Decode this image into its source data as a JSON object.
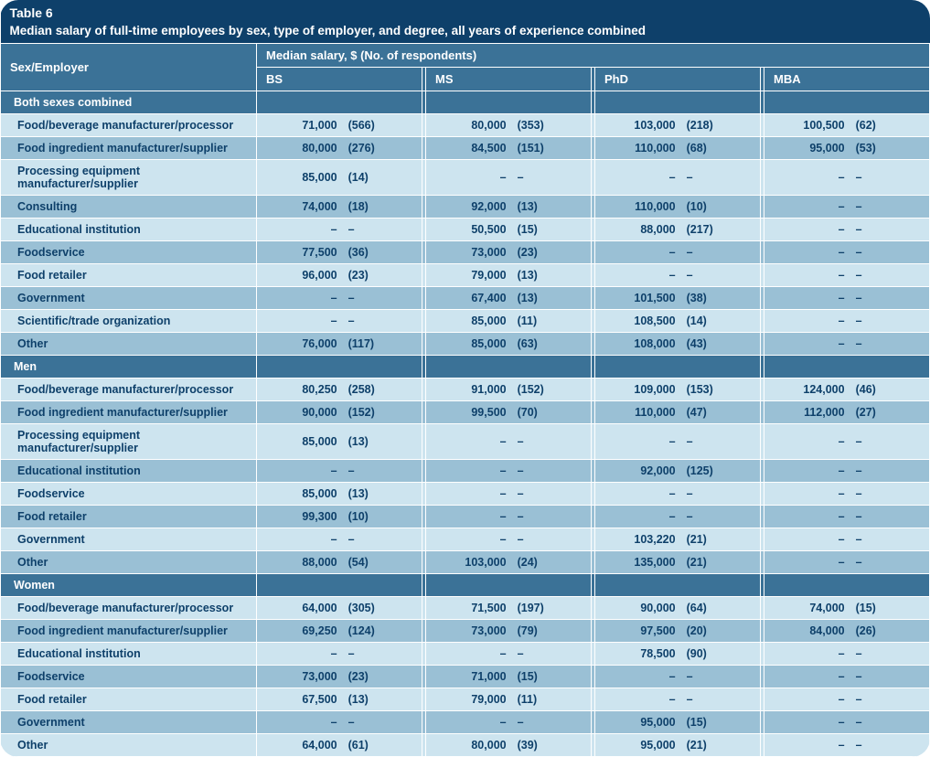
{
  "title": "Table 6",
  "subtitle": "Median salary of full-time employees by sex, type of employer, and degree, all years of experience combined",
  "row_header": "Sex/Employer",
  "super_header": "Median salary, $ (No. of respondents)",
  "columns": [
    "BS",
    "MS",
    "PhD",
    "MBA"
  ],
  "colors": {
    "header_bg": "#0e406a",
    "subheader_bg": "#3b7297",
    "row_light": "#cde4ef",
    "row_dark": "#9ac0d5",
    "text": "#0e406a",
    "border": "#ffffff"
  },
  "sections": [
    {
      "name": "Both sexes combined",
      "rows": [
        {
          "label": "Food/beverage manufacturer/processor",
          "vals": [
            [
              "71,000",
              "(566)"
            ],
            [
              "80,000",
              "(353)"
            ],
            [
              "103,000",
              "(218)"
            ],
            [
              "100,500",
              "(62)"
            ]
          ]
        },
        {
          "label": "Food ingredient manufacturer/supplier",
          "vals": [
            [
              "80,000",
              "(276)"
            ],
            [
              "84,500",
              "(151)"
            ],
            [
              "110,000",
              "(68)"
            ],
            [
              "95,000",
              "(53)"
            ]
          ]
        },
        {
          "label": "Processing equipment manufacturer/supplier",
          "vals": [
            [
              "85,000",
              "(14)"
            ],
            [
              "–",
              "–"
            ],
            [
              "–",
              "–"
            ],
            [
              "–",
              "–"
            ]
          ]
        },
        {
          "label": "Consulting",
          "vals": [
            [
              "74,000",
              "(18)"
            ],
            [
              "92,000",
              "(13)"
            ],
            [
              "110,000",
              "(10)"
            ],
            [
              "–",
              "–"
            ]
          ]
        },
        {
          "label": "Educational institution",
          "vals": [
            [
              "–",
              "–"
            ],
            [
              "50,500",
              "(15)"
            ],
            [
              "88,000",
              "(217)"
            ],
            [
              "–",
              "–"
            ]
          ]
        },
        {
          "label": "Foodservice",
          "vals": [
            [
              "77,500",
              "(36)"
            ],
            [
              "73,000",
              "(23)"
            ],
            [
              "–",
              "–"
            ],
            [
              "–",
              "–"
            ]
          ]
        },
        {
          "label": "Food retailer",
          "vals": [
            [
              "96,000",
              "(23)"
            ],
            [
              "79,000",
              "(13)"
            ],
            [
              "–",
              "–"
            ],
            [
              "–",
              "–"
            ]
          ]
        },
        {
          "label": "Government",
          "vals": [
            [
              "–",
              "–"
            ],
            [
              "67,400",
              "(13)"
            ],
            [
              "101,500",
              "(38)"
            ],
            [
              "–",
              "–"
            ]
          ]
        },
        {
          "label": "Scientific/trade organization",
          "vals": [
            [
              "–",
              "–"
            ],
            [
              "85,000",
              "(11)"
            ],
            [
              "108,500",
              "(14)"
            ],
            [
              "–",
              "–"
            ]
          ]
        },
        {
          "label": "Other",
          "vals": [
            [
              "76,000",
              "(117)"
            ],
            [
              "85,000",
              "(63)"
            ],
            [
              "108,000",
              "(43)"
            ],
            [
              "–",
              "–"
            ]
          ]
        }
      ]
    },
    {
      "name": "Men",
      "rows": [
        {
          "label": "Food/beverage manufacturer/processor",
          "vals": [
            [
              "80,250",
              "(258)"
            ],
            [
              "91,000",
              "(152)"
            ],
            [
              "109,000",
              "(153)"
            ],
            [
              "124,000",
              "(46)"
            ]
          ]
        },
        {
          "label": "Food ingredient manufacturer/supplier",
          "vals": [
            [
              "90,000",
              "(152)"
            ],
            [
              "99,500",
              "(70)"
            ],
            [
              "110,000",
              "(47)"
            ],
            [
              "112,000",
              "(27)"
            ]
          ]
        },
        {
          "label": "Processing equipment manufacturer/supplier",
          "vals": [
            [
              "85,000",
              "(13)"
            ],
            [
              "–",
              "–"
            ],
            [
              "–",
              "–"
            ],
            [
              "–",
              "–"
            ]
          ]
        },
        {
          "label": "Educational institution",
          "vals": [
            [
              "–",
              "–"
            ],
            [
              "–",
              "–"
            ],
            [
              "92,000",
              "(125)"
            ],
            [
              "–",
              "–"
            ]
          ]
        },
        {
          "label": "Foodservice",
          "vals": [
            [
              "85,000",
              "(13)"
            ],
            [
              "–",
              "–"
            ],
            [
              "–",
              "–"
            ],
            [
              "–",
              "–"
            ]
          ]
        },
        {
          "label": "Food retailer",
          "vals": [
            [
              "99,300",
              "(10)"
            ],
            [
              "–",
              "–"
            ],
            [
              "–",
              "–"
            ],
            [
              "–",
              "–"
            ]
          ]
        },
        {
          "label": "Government",
          "vals": [
            [
              "–",
              "–"
            ],
            [
              "–",
              "–"
            ],
            [
              "103,220",
              "(21)"
            ],
            [
              "–",
              "–"
            ]
          ]
        },
        {
          "label": "Other",
          "vals": [
            [
              "88,000",
              "(54)"
            ],
            [
              "103,000",
              "(24)"
            ],
            [
              "135,000",
              "(21)"
            ],
            [
              "–",
              "–"
            ]
          ]
        }
      ]
    },
    {
      "name": "Women",
      "rows": [
        {
          "label": "Food/beverage manufacturer/processor",
          "vals": [
            [
              "64,000",
              "(305)"
            ],
            [
              "71,500",
              "(197)"
            ],
            [
              "90,000",
              "(64)"
            ],
            [
              "74,000",
              "(15)"
            ]
          ]
        },
        {
          "label": "Food ingredient manufacturer/supplier",
          "vals": [
            [
              "69,250",
              "(124)"
            ],
            [
              "73,000",
              "(79)"
            ],
            [
              "97,500",
              "(20)"
            ],
            [
              "84,000",
              "(26)"
            ]
          ]
        },
        {
          "label": "Educational institution",
          "vals": [
            [
              "–",
              "–"
            ],
            [
              "–",
              "–"
            ],
            [
              "78,500",
              "(90)"
            ],
            [
              "–",
              "–"
            ]
          ]
        },
        {
          "label": "Foodservice",
          "vals": [
            [
              "73,000",
              "(23)"
            ],
            [
              "71,000",
              "(15)"
            ],
            [
              "–",
              "–"
            ],
            [
              "–",
              "–"
            ]
          ]
        },
        {
          "label": "Food retailer",
          "vals": [
            [
              "67,500",
              "(13)"
            ],
            [
              "79,000",
              "(11)"
            ],
            [
              "–",
              "–"
            ],
            [
              "–",
              "–"
            ]
          ]
        },
        {
          "label": "Government",
          "vals": [
            [
              "–",
              "–"
            ],
            [
              "–",
              "–"
            ],
            [
              "95,000",
              "(15)"
            ],
            [
              "–",
              "–"
            ]
          ]
        },
        {
          "label": "Other",
          "vals": [
            [
              "64,000",
              "(61)"
            ],
            [
              "80,000",
              "(39)"
            ],
            [
              "95,000",
              "(21)"
            ],
            [
              "–",
              "–"
            ]
          ]
        }
      ]
    }
  ]
}
